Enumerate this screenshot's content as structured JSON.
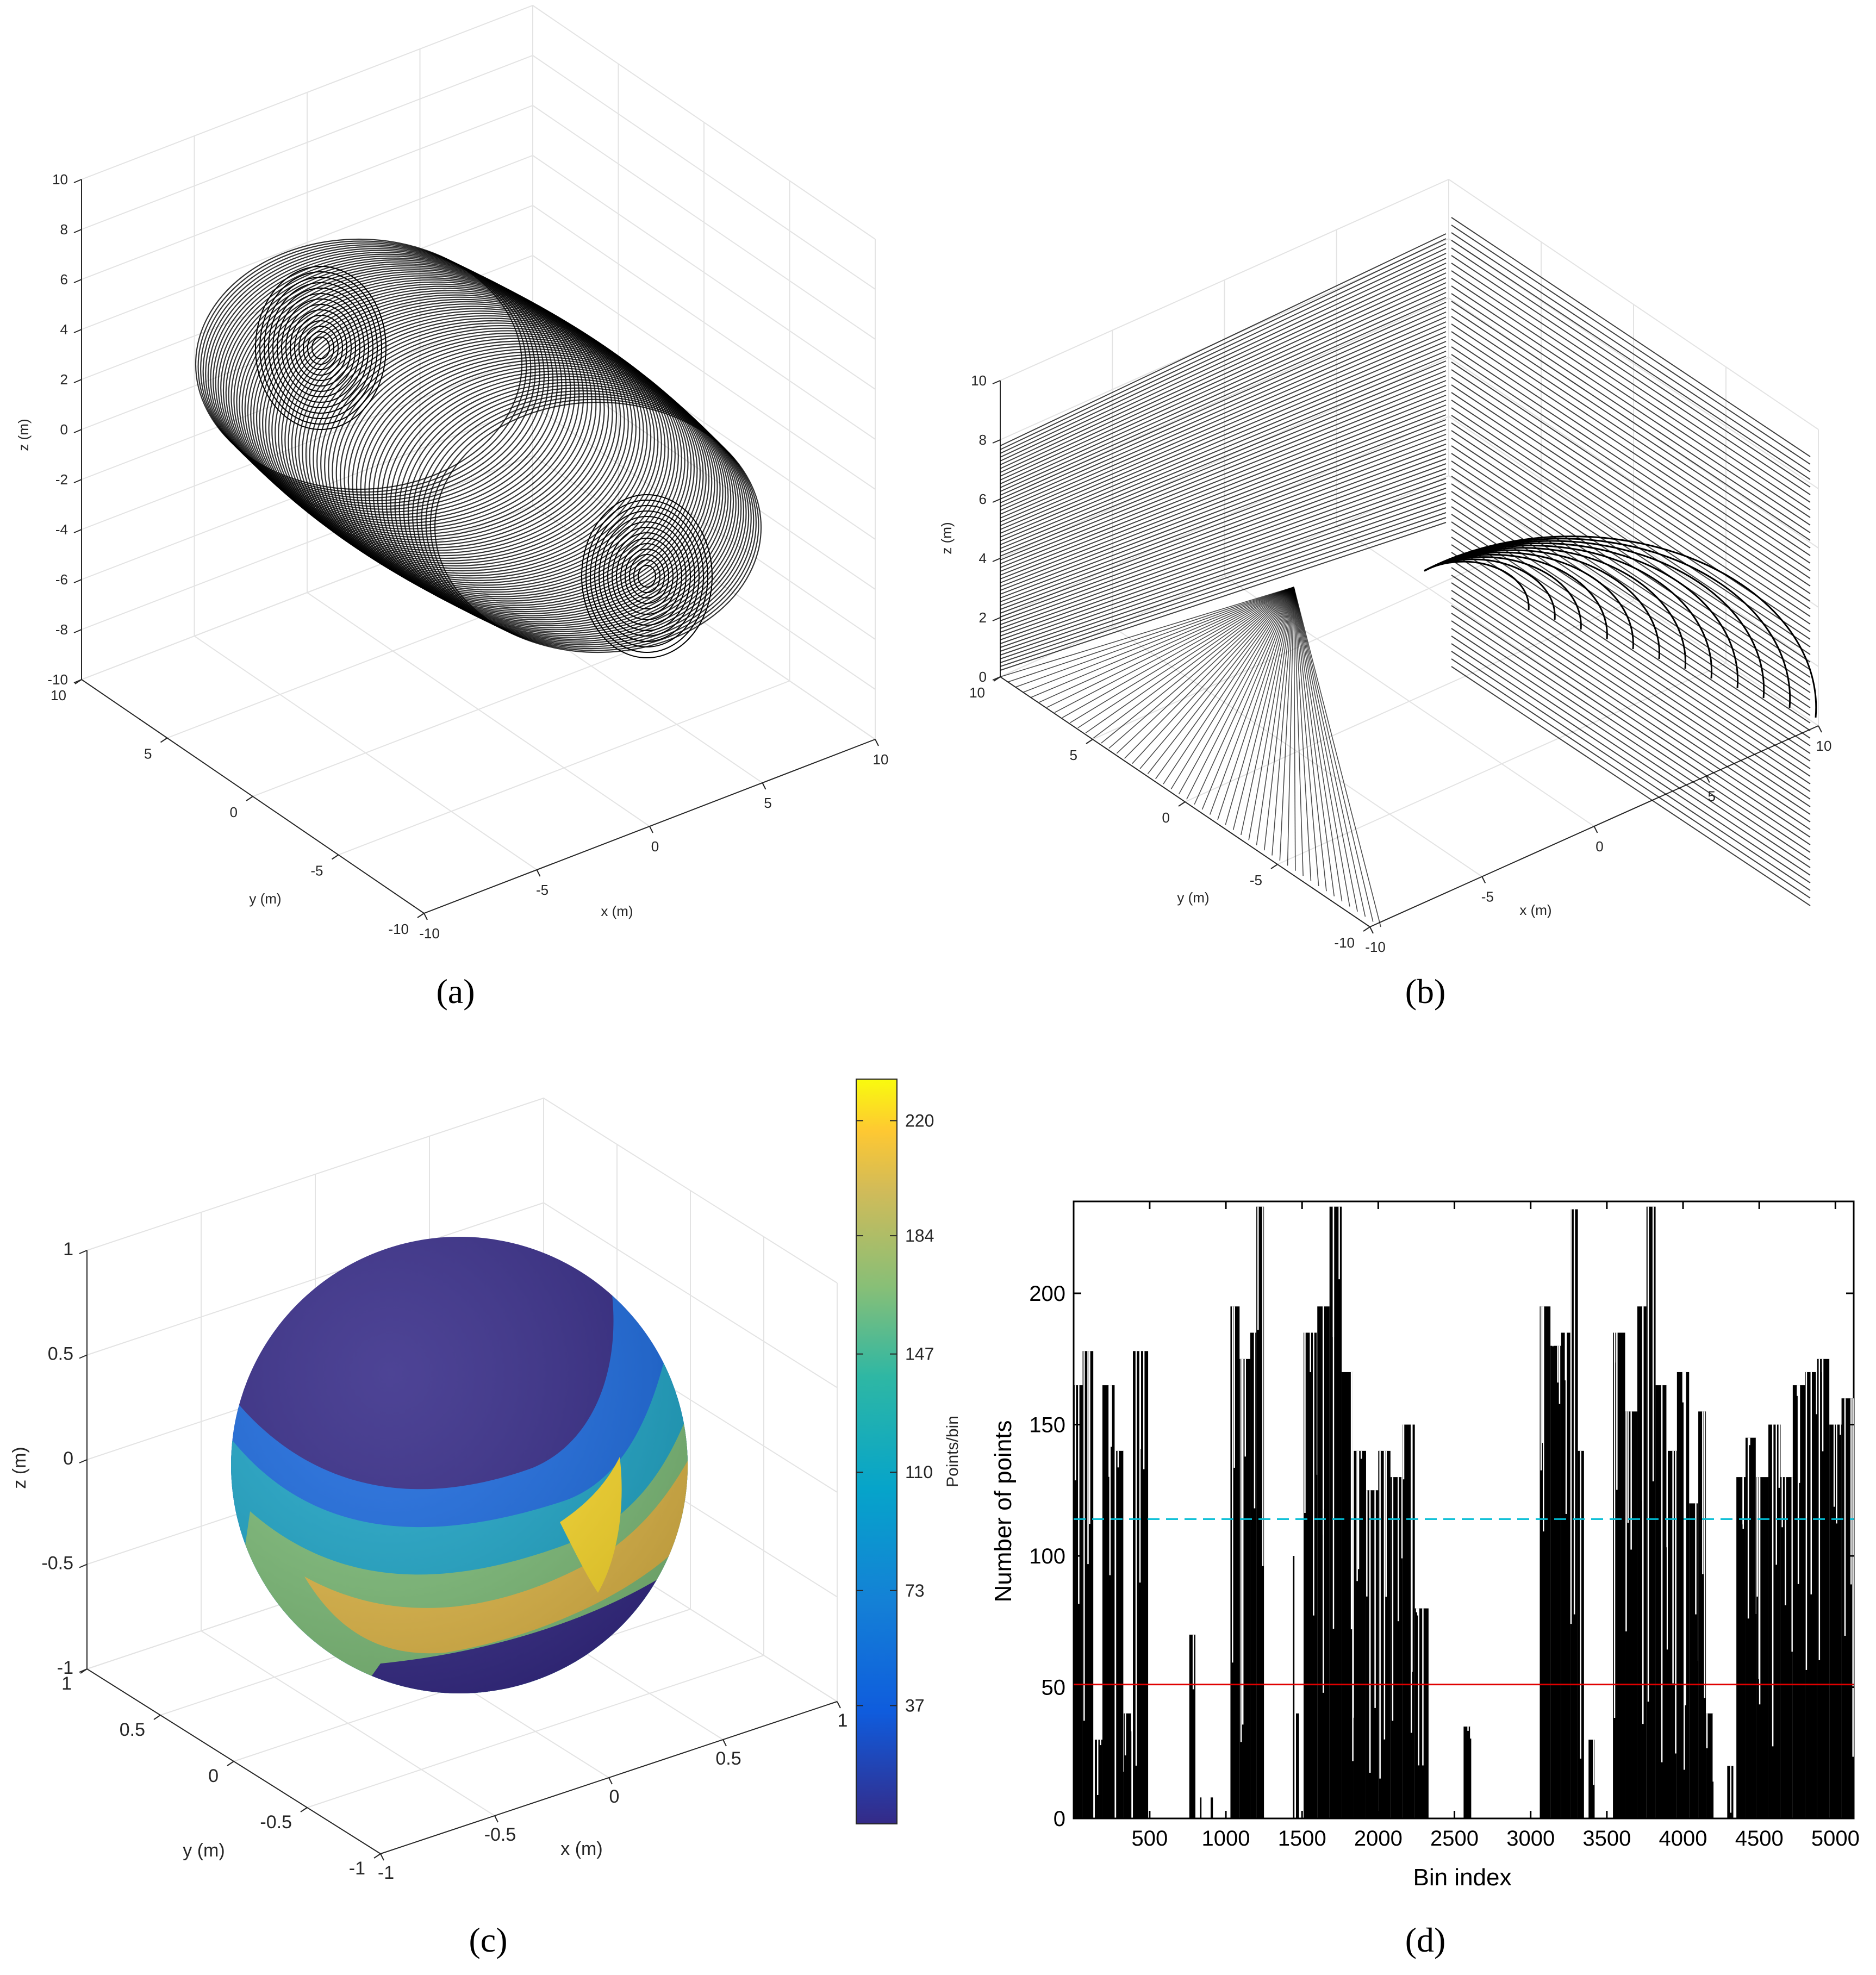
{
  "captions": {
    "a": "(a)",
    "b": "(b)",
    "c": "(c)",
    "d": "(d)"
  },
  "chart_data": [
    {
      "panel": "a",
      "type": "scatter",
      "xlabel": "x (m)",
      "ylabel": "y (m)",
      "zlabel": "z (m)",
      "xticks": [
        "-10",
        "-5",
        "0",
        "5",
        "10"
      ],
      "yticks": [
        "-10",
        "-5",
        "0",
        "5",
        "10"
      ],
      "zticks": [
        "-10",
        "-8",
        "-6",
        "-4",
        "-2",
        "0",
        "2",
        "4",
        "6",
        "8",
        "10"
      ],
      "xlim": [
        -10,
        10
      ],
      "ylim": [
        -10,
        10
      ],
      "zlim": [
        -10,
        10
      ],
      "grid": true,
      "color": "#000000"
    },
    {
      "panel": "b",
      "type": "scatter",
      "xlabel": "x (m)",
      "ylabel": "y (m)",
      "zlabel": "z (m)",
      "xticks": [
        "-10",
        "-5",
        "0",
        "5",
        "10"
      ],
      "yticks": [
        "-10",
        "-5",
        "0",
        "5",
        "10"
      ],
      "zticks": [
        "0",
        "2",
        "4",
        "6",
        "8",
        "10"
      ],
      "xlim": [
        -10,
        10
      ],
      "ylim": [
        -10,
        10
      ],
      "zlim": [
        0,
        10
      ],
      "grid": true,
      "color": "#000000"
    },
    {
      "panel": "c",
      "type": "heatmap",
      "xlabel": "x (m)",
      "ylabel": "y (m)",
      "zlabel": "z (m)",
      "xticks": [
        "-1",
        "-0.5",
        "0",
        "0.5",
        "1"
      ],
      "yticks": [
        "-1",
        "-0.5",
        "0",
        "0.5",
        "1"
      ],
      "zticks": [
        "-1",
        "-0.5",
        "0",
        "0.5",
        "1"
      ],
      "xlim": [
        -1,
        1
      ],
      "ylim": [
        -1,
        1
      ],
      "zlim": [
        -1,
        1
      ],
      "colorbar": {
        "label": "Points/bin",
        "ticks": [
          "37",
          "73",
          "110",
          "147",
          "184",
          "220"
        ],
        "range": [
          0,
          233
        ]
      },
      "colors": {
        "low": "#352a87",
        "mid": "#1fb0b8",
        "high": "#f9fb0e"
      }
    },
    {
      "panel": "d",
      "type": "bar",
      "xlabel": "Bin index",
      "ylabel": "Number of points",
      "xticks": [
        "500",
        "1000",
        "1500",
        "2000",
        "2500",
        "3000",
        "3500",
        "4000",
        "4500",
        "5000"
      ],
      "yticks": [
        "0",
        "50",
        "100",
        "150",
        "200"
      ],
      "xlim": [
        1,
        5120
      ],
      "ylim": [
        0,
        235
      ],
      "reference_lines": [
        {
          "value": 114,
          "style": "dashed",
          "color": "#00bcd4"
        },
        {
          "value": 51,
          "style": "solid",
          "color": "#e00000"
        }
      ],
      "bar_color": "#000000",
      "segments": [
        {
          "start": 1,
          "end": 60,
          "level": 165
        },
        {
          "start": 60,
          "end": 130,
          "level": 178
        },
        {
          "start": 140,
          "end": 190,
          "level": 30
        },
        {
          "start": 190,
          "end": 270,
          "level": 165
        },
        {
          "start": 280,
          "end": 330,
          "level": 140
        },
        {
          "start": 330,
          "end": 380,
          "level": 40
        },
        {
          "start": 390,
          "end": 490,
          "level": 178
        },
        {
          "start": 760,
          "end": 800,
          "level": 70
        },
        {
          "start": 830,
          "end": 840,
          "level": 8
        },
        {
          "start": 900,
          "end": 915,
          "level": 8
        },
        {
          "start": 1030,
          "end": 1090,
          "level": 195
        },
        {
          "start": 1090,
          "end": 1160,
          "level": 175
        },
        {
          "start": 1160,
          "end": 1200,
          "level": 185
        },
        {
          "start": 1200,
          "end": 1250,
          "level": 233
        },
        {
          "start": 1440,
          "end": 1450,
          "level": 100
        },
        {
          "start": 1460,
          "end": 1480,
          "level": 40
        },
        {
          "start": 1510,
          "end": 1600,
          "level": 185
        },
        {
          "start": 1600,
          "end": 1680,
          "level": 195
        },
        {
          "start": 1680,
          "end": 1760,
          "level": 233
        },
        {
          "start": 1760,
          "end": 1840,
          "level": 170
        },
        {
          "start": 1840,
          "end": 1920,
          "level": 140
        },
        {
          "start": 1920,
          "end": 2000,
          "level": 125
        },
        {
          "start": 2000,
          "end": 2080,
          "level": 140
        },
        {
          "start": 2080,
          "end": 2160,
          "level": 130
        },
        {
          "start": 2160,
          "end": 2240,
          "level": 150
        },
        {
          "start": 2240,
          "end": 2330,
          "level": 80
        },
        {
          "start": 2560,
          "end": 2610,
          "level": 35
        },
        {
          "start": 3060,
          "end": 3130,
          "level": 195
        },
        {
          "start": 3130,
          "end": 3200,
          "level": 180
        },
        {
          "start": 3200,
          "end": 3260,
          "level": 185
        },
        {
          "start": 3260,
          "end": 3310,
          "level": 232
        },
        {
          "start": 3310,
          "end": 3350,
          "level": 140
        },
        {
          "start": 3380,
          "end": 3420,
          "level": 30
        },
        {
          "start": 3540,
          "end": 3620,
          "level": 185
        },
        {
          "start": 3620,
          "end": 3700,
          "level": 155
        },
        {
          "start": 3700,
          "end": 3760,
          "level": 195
        },
        {
          "start": 3760,
          "end": 3820,
          "level": 233
        },
        {
          "start": 3820,
          "end": 3900,
          "level": 165
        },
        {
          "start": 3900,
          "end": 3960,
          "level": 140
        },
        {
          "start": 3960,
          "end": 4040,
          "level": 170
        },
        {
          "start": 4040,
          "end": 4100,
          "level": 120
        },
        {
          "start": 4100,
          "end": 4150,
          "level": 155
        },
        {
          "start": 4150,
          "end": 4200,
          "level": 40
        },
        {
          "start": 4290,
          "end": 4330,
          "level": 20
        },
        {
          "start": 4350,
          "end": 4410,
          "level": 130
        },
        {
          "start": 4410,
          "end": 4480,
          "level": 145
        },
        {
          "start": 4480,
          "end": 4560,
          "level": 130
        },
        {
          "start": 4560,
          "end": 4640,
          "level": 150
        },
        {
          "start": 4640,
          "end": 4720,
          "level": 130
        },
        {
          "start": 4720,
          "end": 4800,
          "level": 165
        },
        {
          "start": 4800,
          "end": 4880,
          "level": 170
        },
        {
          "start": 4880,
          "end": 4960,
          "level": 175
        },
        {
          "start": 4960,
          "end": 5040,
          "level": 150
        },
        {
          "start": 5040,
          "end": 5120,
          "level": 160
        }
      ]
    }
  ]
}
